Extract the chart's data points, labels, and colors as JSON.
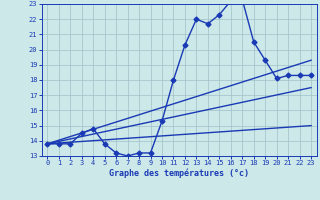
{
  "title": "",
  "xlabel": "Graphe des températures (°c)",
  "bg_color": "#cce8e8",
  "line_color": "#1a3ab5",
  "grid_color": "#a0c0c8",
  "axis_color": "#1a3ab5",
  "xlim": [
    -0.5,
    23.5
  ],
  "ylim": [
    13,
    23
  ],
  "xticks": [
    0,
    1,
    2,
    3,
    4,
    5,
    6,
    7,
    8,
    9,
    10,
    11,
    12,
    13,
    14,
    15,
    16,
    17,
    18,
    19,
    20,
    21,
    22,
    23
  ],
  "yticks": [
    13,
    14,
    15,
    16,
    17,
    18,
    19,
    20,
    21,
    22,
    23
  ],
  "series": [
    {
      "x": [
        0,
        1,
        2,
        3,
        4,
        5,
        6,
        7,
        8,
        9,
        10,
        11,
        12,
        13,
        14,
        15,
        16,
        17,
        18,
        19,
        20,
        21,
        22,
        23
      ],
      "y": [
        13.8,
        13.8,
        13.8,
        14.5,
        14.8,
        13.8,
        13.2,
        13.0,
        13.2,
        13.2,
        15.3,
        18.0,
        20.3,
        22.0,
        21.7,
        22.3,
        23.2,
        23.3,
        20.5,
        19.3,
        18.1,
        18.3,
        18.3,
        18.3
      ],
      "marker": "D",
      "markersize": 2.5,
      "linewidth": 1.0
    },
    {
      "x": [
        0,
        23
      ],
      "y": [
        13.8,
        17.5
      ],
      "marker": null,
      "linewidth": 1.0
    },
    {
      "x": [
        0,
        23
      ],
      "y": [
        13.8,
        19.3
      ],
      "marker": null,
      "linewidth": 1.0
    },
    {
      "x": [
        0,
        23
      ],
      "y": [
        13.8,
        15.0
      ],
      "marker": null,
      "linewidth": 1.0
    }
  ]
}
